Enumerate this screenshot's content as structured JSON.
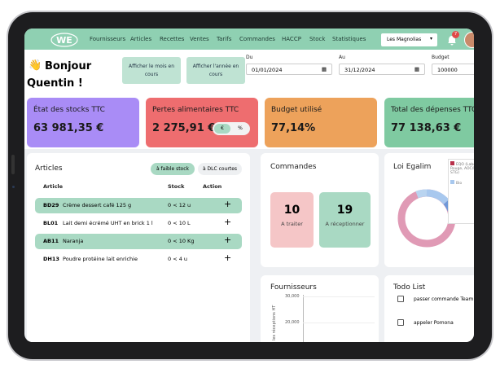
{
  "nav": {
    "items": [
      "Fournisseurs",
      "Articles",
      "Recettes",
      "Ventes",
      "Tarifs",
      "Commandes",
      "HACCP",
      "Stock",
      "Statistiques"
    ],
    "site": "Les Magnolias",
    "notifications": "7"
  },
  "greeting": {
    "emoji": "👋",
    "line1": "Bonjour",
    "line2": "Quentin !"
  },
  "filters": {
    "month_button": "Afficher le mois en cours",
    "year_button": "Afficher l'année en cours",
    "from_label": "Du",
    "from_value": "01/01/2024",
    "to_label": "Au",
    "to_value": "31/12/2024",
    "budget_label": "Budget",
    "budget_value": "100000"
  },
  "cards": [
    {
      "title": "État des stocks TTC",
      "value": "63 981,35 €"
    },
    {
      "title": "Pertes alimentaires TTC",
      "value": "2 275,91 €",
      "toggle": [
        "€",
        "%"
      ]
    },
    {
      "title": "Budget utilisé",
      "value": "77,14%"
    },
    {
      "title": "Total des dépenses TTC",
      "value": "77 138,63 €"
    }
  ],
  "articles": {
    "title": "Articles",
    "tabs": [
      "à faible stock",
      "à DLC courtes"
    ],
    "columns": [
      "Article",
      "Stock",
      "Action"
    ],
    "rows": [
      [
        "BD29",
        "Crème dessert café 125 g",
        "0 < 12 u"
      ],
      [
        "BL01",
        "Lait demi écrémé UHT en brick 1 l",
        "0 < 10 L"
      ],
      [
        "AB11",
        "Naranja",
        "0 < 10 Kg"
      ],
      [
        "DH13",
        "Poudre protéine lait enrichie",
        "0 < 4 u"
      ]
    ]
  },
  "orders": {
    "title": "Commandes",
    "boxes": [
      {
        "count": "10",
        "label": "A traiter"
      },
      {
        "count": "19",
        "label": "A réceptionner"
      }
    ]
  },
  "egalim": {
    "title": "Loi Egalim",
    "legend": [
      "EQO (Label Rouge, AOC/IGP, STG)",
      "Bio"
    ]
  },
  "suppliers": {
    "title": "Fournisseurs",
    "y_axis_label": "les réceptions HT",
    "y_ticks": [
      "30,000",
      "20,000"
    ]
  },
  "todo": {
    "title": "Todo List",
    "items": [
      "passer commande Team Ou",
      "appeler Pomona"
    ]
  }
}
